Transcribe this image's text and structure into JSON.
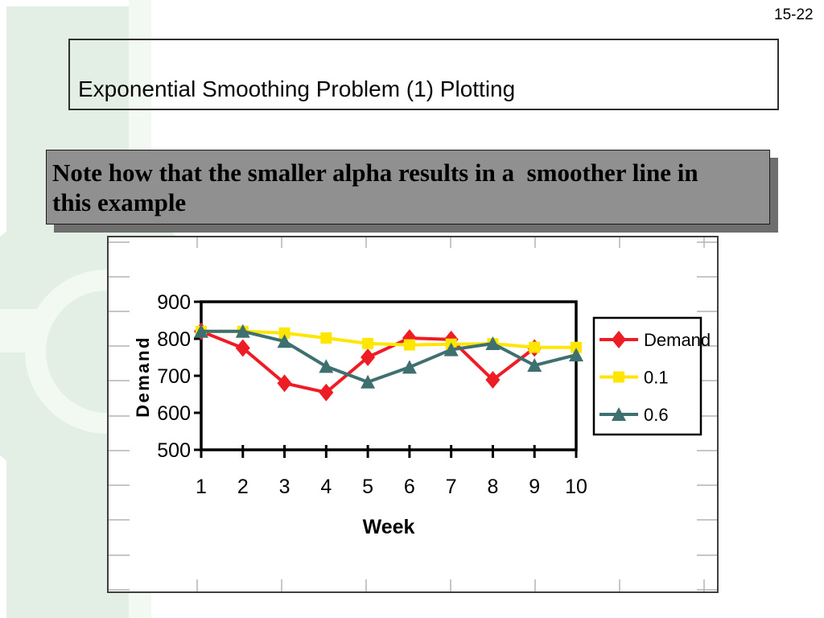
{
  "page": {
    "number": "15-22"
  },
  "title": {
    "text": "Exponential Smoothing Problem (1) Plotting"
  },
  "note": {
    "lines": [
      "Note how that the smaller alpha results in a  smoother line in",
      "this example"
    ]
  },
  "theme": {
    "mint": "#e3efe4",
    "mint_light": "#f2f8f2",
    "note_bg": "#909090",
    "note_shadow": "#6e6e6e",
    "axis_color": "#000000",
    "gridcell_tick_color": "#b4b4b4"
  },
  "chart_data": {
    "type": "line",
    "title": "",
    "xlabel": "Week",
    "ylabel": "Demand",
    "x": [
      1,
      2,
      3,
      4,
      5,
      6,
      7,
      8,
      9,
      10
    ],
    "xticklabels": [
      "1",
      "2",
      "3",
      "4",
      "5",
      "6",
      "7",
      "8",
      "9",
      "10"
    ],
    "ylim": [
      500,
      900
    ],
    "yticks": [
      900,
      800,
      700,
      600,
      500
    ],
    "grid": false,
    "legend_position": "right",
    "series": [
      {
        "name": "Demand",
        "color": "#ee1c25",
        "marker": "diamond",
        "x": [
          1,
          2,
          3,
          4,
          5,
          6,
          7,
          8,
          9
        ],
        "values": [
          820,
          775,
          680,
          655,
          750,
          802,
          798,
          689,
          775
        ]
      },
      {
        "name": "0.1",
        "color": "#ffe600",
        "marker": "square",
        "x": [
          1,
          2,
          3,
          4,
          5,
          6,
          7,
          8,
          9,
          10
        ],
        "values": [
          820,
          820,
          815.5,
          801.95,
          787.26,
          783.53,
          785.38,
          786.64,
          776.88,
          776.69
        ]
      },
      {
        "name": "0.6",
        "color": "#3e7070",
        "marker": "triangle",
        "x": [
          1,
          2,
          3,
          4,
          5,
          6,
          7,
          8,
          9,
          10
        ],
        "values": [
          820,
          820,
          793,
          725.2,
          683.08,
          723.23,
          770.49,
          787,
          728.2,
          756.28
        ]
      }
    ]
  }
}
